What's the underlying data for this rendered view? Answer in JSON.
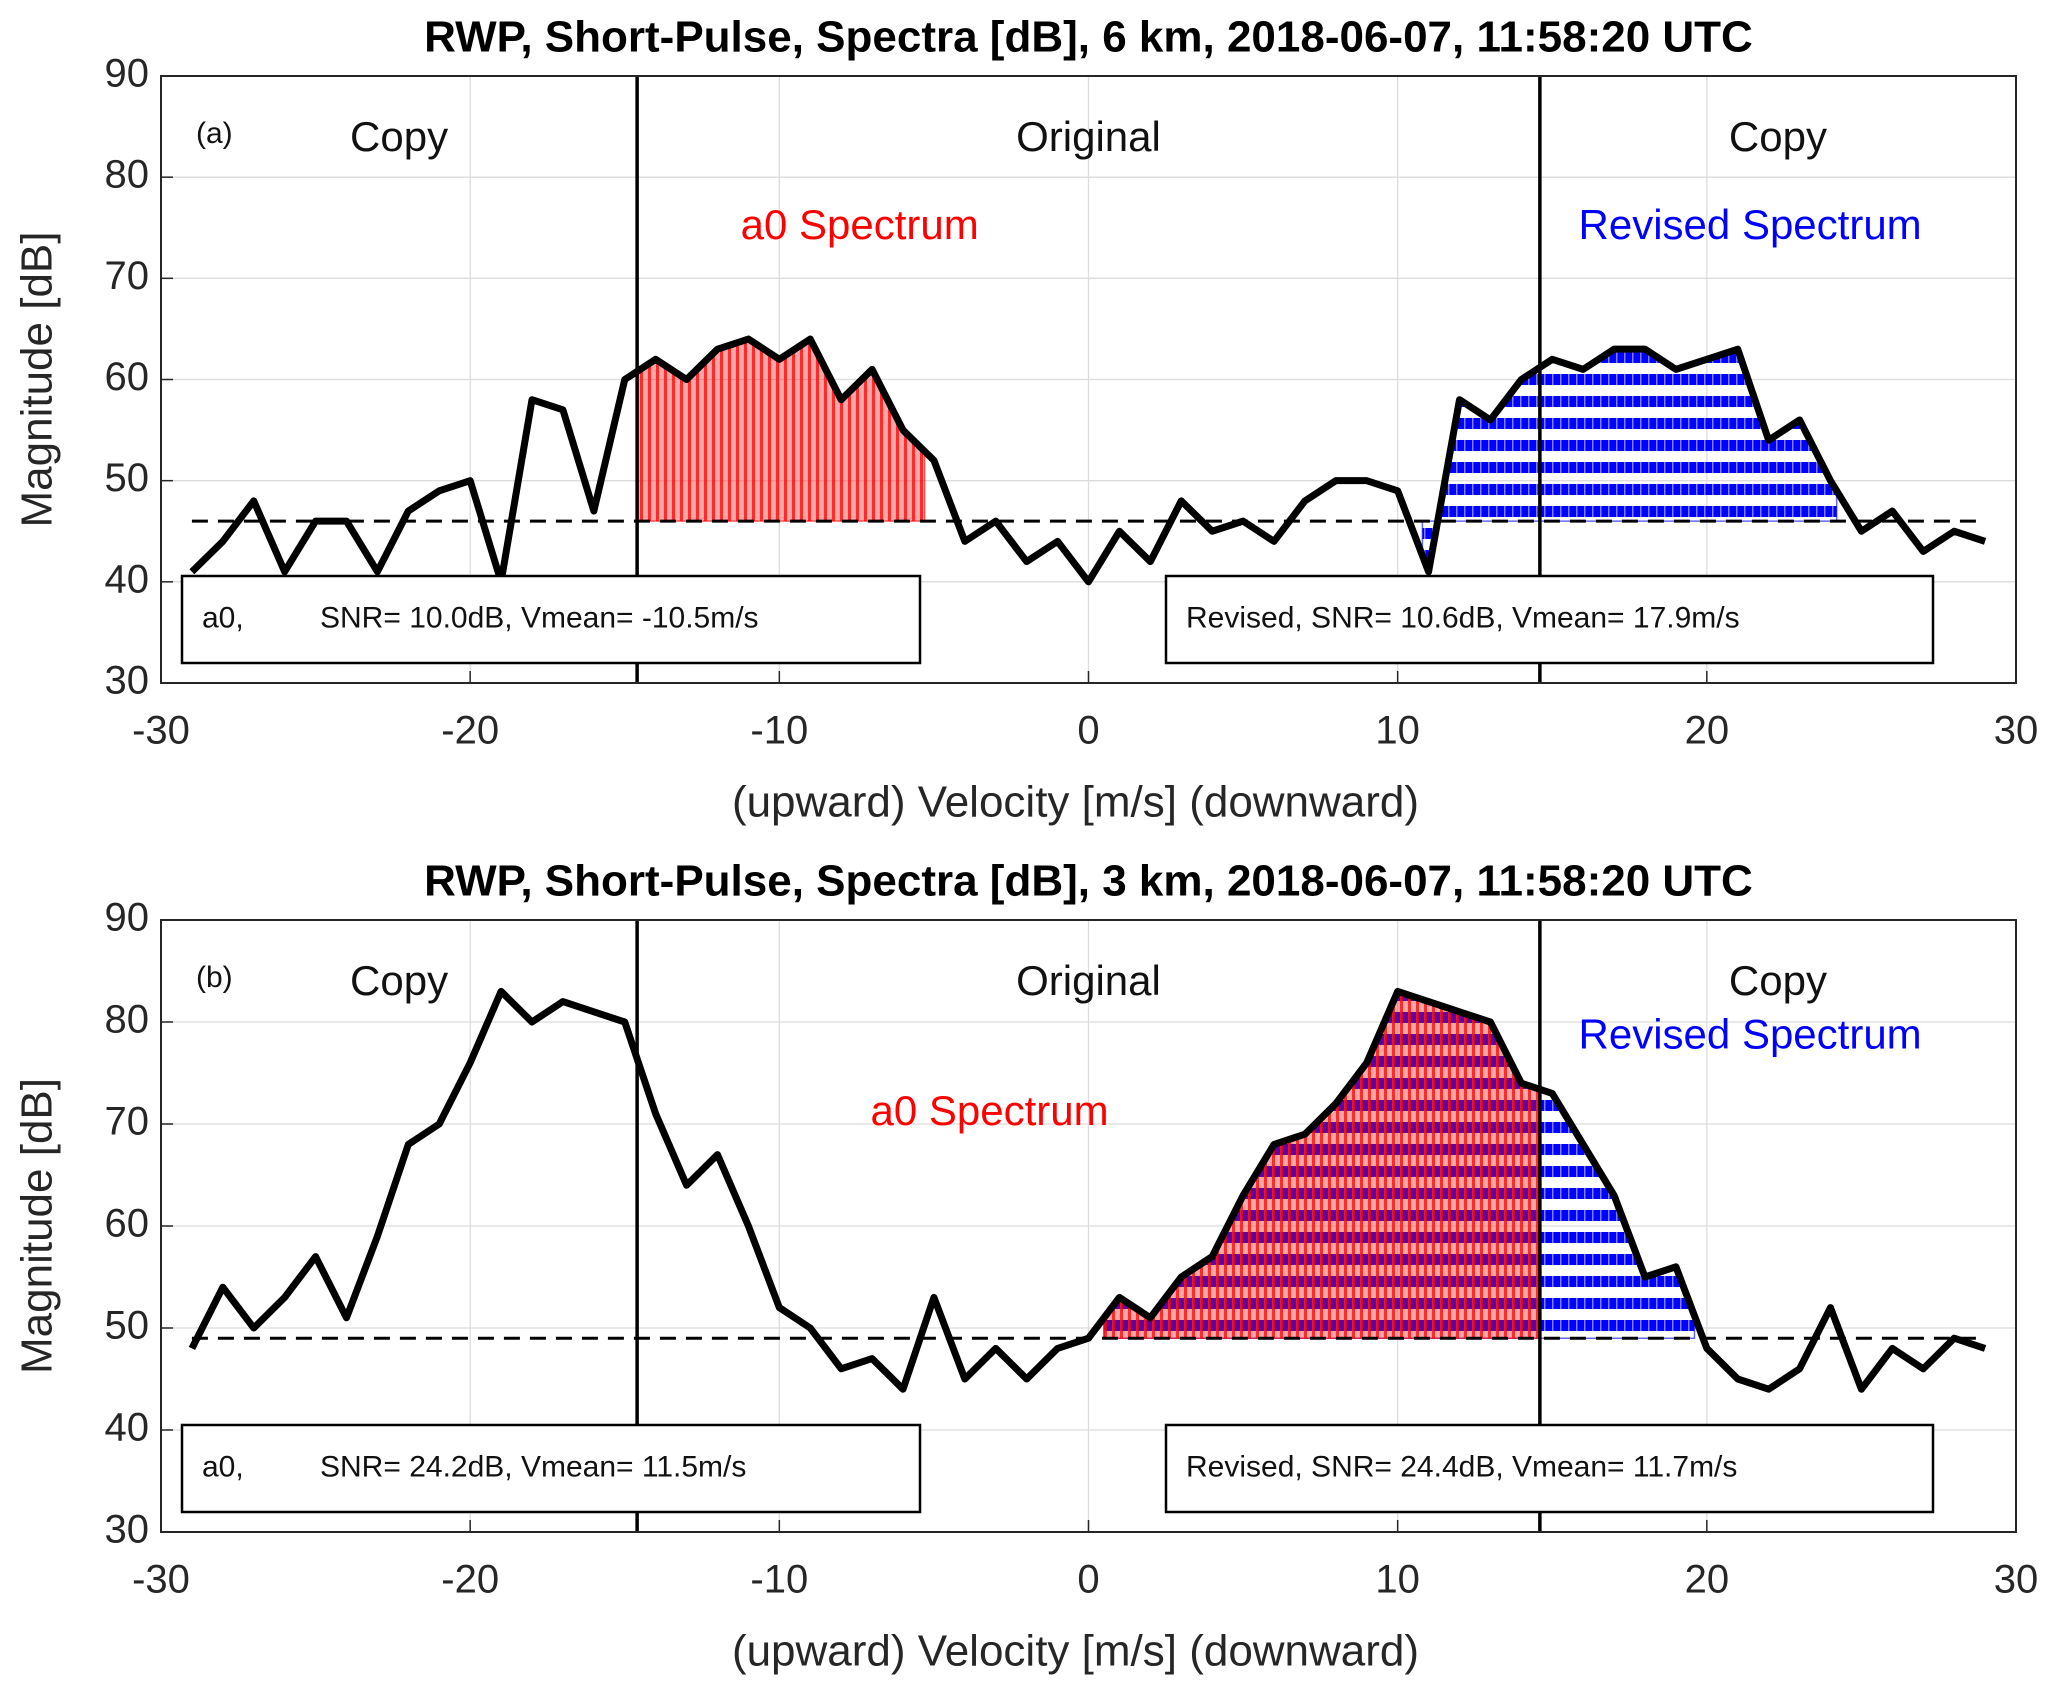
{
  "chart_data": [
    {
      "type": "line",
      "title": "RWP, Short-Pulse, Spectra [dB], 6 km, 2018-06-07, 11:58:20 UTC",
      "panel_label": "(a)",
      "xlabel": "(upward)  Velocity [m/s]  (downward)",
      "ylabel": "Magnitude [dB]",
      "region_labels": [
        "Copy",
        "Original",
        "Copy"
      ],
      "boundaries": [
        -14.6,
        14.6
      ],
      "noise_level": 46,
      "xlim": [
        -30,
        30
      ],
      "ylim": [
        30,
        90
      ],
      "xticks": [
        -30,
        -20,
        -10,
        0,
        10,
        20,
        30
      ],
      "yticks": [
        30,
        40,
        50,
        60,
        70,
        80,
        90
      ],
      "grid": true,
      "color": "#000000",
      "x": [
        -29,
        -28,
        -27,
        -26,
        -25,
        -24,
        -23,
        -22,
        -21,
        -20,
        -19,
        -18,
        -17,
        -16,
        -15,
        -14,
        -13,
        -12,
        -11,
        -10,
        -9,
        -8,
        -7,
        -6,
        -5,
        -4,
        -3,
        -2,
        -1,
        0,
        1,
        2,
        3,
        4,
        5,
        6,
        7,
        8,
        9,
        10,
        11,
        12,
        13,
        14,
        15,
        16,
        17,
        18,
        19,
        20,
        21,
        22,
        23,
        24,
        25,
        26,
        27,
        28,
        29
      ],
      "values": [
        41,
        44,
        48,
        41,
        46,
        46,
        41,
        47,
        49,
        50,
        40,
        58,
        57,
        47,
        60,
        62,
        60,
        63,
        64,
        62,
        64,
        58,
        61,
        55,
        52,
        44,
        46,
        42,
        44,
        40,
        45,
        42,
        48,
        45,
        46,
        44,
        48,
        50,
        50,
        49,
        41,
        58,
        56,
        60,
        62,
        61,
        63,
        63,
        61,
        62,
        63,
        54,
        56,
        50,
        45,
        47,
        43,
        45,
        44
      ],
      "fills": [
        {
          "name": "a0 Spectrum",
          "color": "#ff0000",
          "x_range": [
            -14.6,
            -5.3
          ]
        },
        {
          "name": "Revised Spectrum",
          "color": "#0000ff",
          "x_range": [
            10.8,
            24.2
          ]
        }
      ],
      "info_boxes": [
        [
          "a0,",
          "SNR= 10.0dB, Vmean= -10.5m/s"
        ],
        [
          "Revised, SNR= 10.6dB, Vmean= 17.9m/s"
        ]
      ]
    },
    {
      "type": "line",
      "title": "RWP, Short-Pulse, Spectra [dB], 3 km, 2018-06-07, 11:58:20 UTC",
      "panel_label": "(b)",
      "xlabel": "(upward)  Velocity [m/s]  (downward)",
      "ylabel": "Magnitude [dB]",
      "region_labels": [
        "Copy",
        "Original",
        "Copy"
      ],
      "boundaries": [
        -14.6,
        14.6
      ],
      "noise_level": 49,
      "xlim": [
        -30,
        30
      ],
      "ylim": [
        30,
        90
      ],
      "xticks": [
        -30,
        -20,
        -10,
        0,
        10,
        20,
        30
      ],
      "yticks": [
        30,
        40,
        50,
        60,
        70,
        80,
        90
      ],
      "grid": true,
      "color": "#000000",
      "x": [
        -29,
        -28,
        -27,
        -26,
        -25,
        -24,
        -23,
        -22,
        -21,
        -20,
        -19,
        -18,
        -17,
        -16,
        -15,
        -14,
        -13,
        -12,
        -11,
        -10,
        -9,
        -8,
        -7,
        -6,
        -5,
        -4,
        -3,
        -2,
        -1,
        0,
        1,
        2,
        3,
        4,
        5,
        6,
        7,
        8,
        9,
        10,
        11,
        12,
        13,
        14,
        15,
        16,
        17,
        18,
        19,
        20,
        21,
        22,
        23,
        24,
        25,
        26,
        27,
        28,
        29
      ],
      "values": [
        48,
        54,
        50,
        53,
        57,
        51,
        59,
        68,
        70,
        76,
        83,
        80,
        82,
        81,
        80,
        71,
        64,
        67,
        60,
        52,
        50,
        46,
        47,
        44,
        53,
        45,
        48,
        45,
        48,
        49,
        53,
        51,
        55,
        57,
        63,
        68,
        69,
        72,
        76,
        83,
        82,
        81,
        80,
        74,
        73,
        68,
        63,
        55,
        56,
        48,
        45,
        44,
        46,
        52,
        44,
        48,
        46,
        49,
        48
      ],
      "fills": [
        {
          "name": "Revised Spectrum",
          "color": "#0000ff",
          "x_range": [
            0.5,
            19.6
          ]
        },
        {
          "name": "a0 Spectrum",
          "color": "#ff0000",
          "x_range": [
            0.5,
            14.6
          ]
        }
      ],
      "info_boxes": [
        [
          "a0,",
          "SNR= 24.2dB, Vmean= 11.5m/s"
        ],
        [
          "Revised, SNR= 24.4dB, Vmean= 11.7m/s"
        ]
      ]
    }
  ]
}
